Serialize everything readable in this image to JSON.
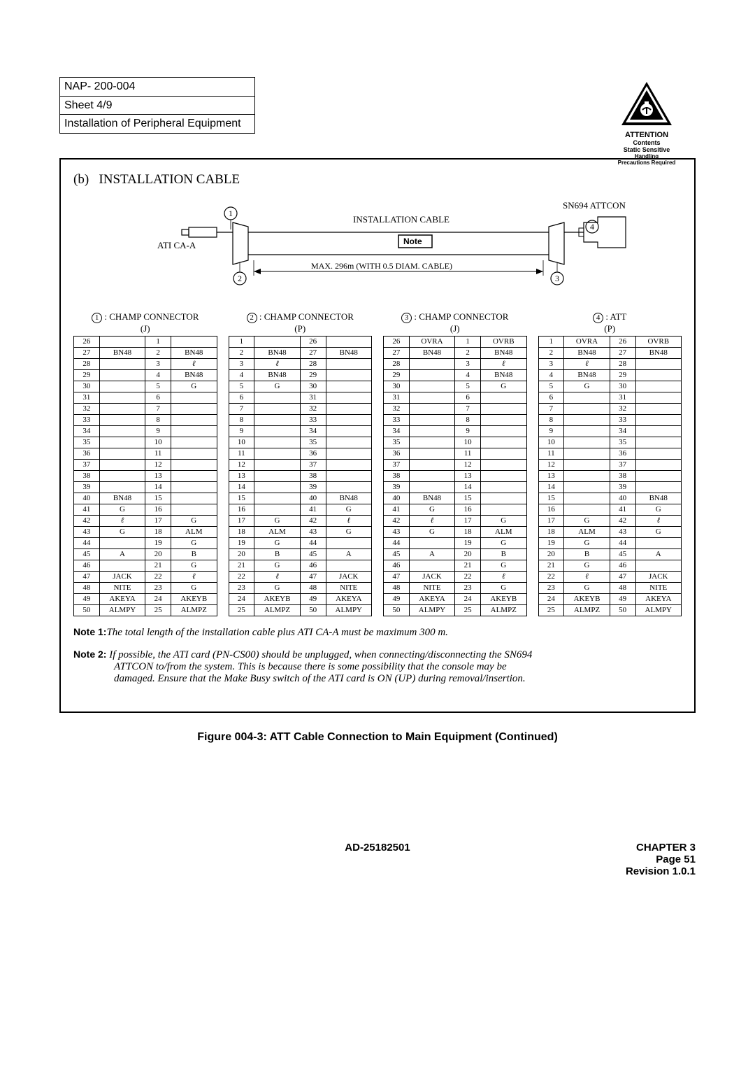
{
  "header": {
    "nap": "NAP- 200-004",
    "sheet": "Sheet 4/9",
    "title": "Installation of Peripheral Equipment"
  },
  "attention": {
    "l1": "ATTENTION",
    "l2": "Contents",
    "l3": "Static Sensitive",
    "l4": "Handling",
    "l5": "Precautions Required"
  },
  "diagram": {
    "section_label": "(b)",
    "section_title": "INSTALLATION CABLE",
    "ati": "ATI CA-A",
    "install_cable": "INSTALLATION CABLE",
    "note_label": "Note",
    "max_label": "MAX. 296m (WITH 0.5 DIAM. CABLE)",
    "sn": "SN694 ATTCON",
    "c1": "1",
    "c2": "2",
    "c3": "3",
    "c4": "4"
  },
  "conn_labels": {
    "c1a": "1",
    "c1b": ": CHAMP CONNECTOR",
    "c1c": "(J)",
    "c2a": "2",
    "c2b": ": CHAMP CONNECTOR",
    "c2c": "(P)",
    "c3a": "3",
    "c3b": ": CHAMP CONNECTOR",
    "c3c": "(J)",
    "c4a": "4",
    "c4b": ": ATT",
    "c4c": "(P)"
  },
  "tables": {
    "t1": [
      [
        "26",
        "",
        "1",
        ""
      ],
      [
        "27",
        "BN48",
        "2",
        "BN48"
      ],
      [
        "28",
        "",
        "3",
        "ℓ"
      ],
      [
        "29",
        "",
        "4",
        "BN48"
      ],
      [
        "30",
        "",
        "5",
        "G"
      ],
      [
        "31",
        "",
        "6",
        ""
      ],
      [
        "32",
        "",
        "7",
        ""
      ],
      [
        "33",
        "",
        "8",
        ""
      ],
      [
        "34",
        "",
        "9",
        ""
      ],
      [
        "35",
        "",
        "10",
        ""
      ],
      [
        "36",
        "",
        "11",
        ""
      ],
      [
        "37",
        "",
        "12",
        ""
      ],
      [
        "38",
        "",
        "13",
        ""
      ],
      [
        "39",
        "",
        "14",
        ""
      ],
      [
        "40",
        "BN48",
        "15",
        ""
      ],
      [
        "41",
        "G",
        "16",
        ""
      ],
      [
        "42",
        "ℓ",
        "17",
        "G"
      ],
      [
        "43",
        "G",
        "18",
        "ALM"
      ],
      [
        "44",
        "",
        "19",
        "G"
      ],
      [
        "45",
        "A",
        "20",
        "B"
      ],
      [
        "46",
        "",
        "21",
        "G"
      ],
      [
        "47",
        "JACK",
        "22",
        "ℓ"
      ],
      [
        "48",
        "NITE",
        "23",
        "G"
      ],
      [
        "49",
        "AKEYA",
        "24",
        "AKEYB"
      ],
      [
        "50",
        "ALMPY",
        "25",
        "ALMPZ"
      ]
    ],
    "t2": [
      [
        "1",
        "",
        "26",
        ""
      ],
      [
        "2",
        "BN48",
        "27",
        "BN48"
      ],
      [
        "3",
        "ℓ",
        "28",
        ""
      ],
      [
        "4",
        "BN48",
        "29",
        ""
      ],
      [
        "5",
        "G",
        "30",
        ""
      ],
      [
        "6",
        "",
        "31",
        ""
      ],
      [
        "7",
        "",
        "32",
        ""
      ],
      [
        "8",
        "",
        "33",
        ""
      ],
      [
        "9",
        "",
        "34",
        ""
      ],
      [
        "10",
        "",
        "35",
        ""
      ],
      [
        "11",
        "",
        "36",
        ""
      ],
      [
        "12",
        "",
        "37",
        ""
      ],
      [
        "13",
        "",
        "38",
        ""
      ],
      [
        "14",
        "",
        "39",
        ""
      ],
      [
        "15",
        "",
        "40",
        "BN48"
      ],
      [
        "16",
        "",
        "41",
        "G"
      ],
      [
        "17",
        "G",
        "42",
        "ℓ"
      ],
      [
        "18",
        "ALM",
        "43",
        "G"
      ],
      [
        "19",
        "G",
        "44",
        ""
      ],
      [
        "20",
        "B",
        "45",
        "A"
      ],
      [
        "21",
        "G",
        "46",
        ""
      ],
      [
        "22",
        "ℓ",
        "47",
        "JACK"
      ],
      [
        "23",
        "G",
        "48",
        "NITE"
      ],
      [
        "24",
        "AKEYB",
        "49",
        "AKEYA"
      ],
      [
        "25",
        "ALMPZ",
        "50",
        "ALMPY"
      ]
    ],
    "t3": [
      [
        "26",
        "OVRA",
        "1",
        "OVRB"
      ],
      [
        "27",
        "BN48",
        "2",
        "BN48"
      ],
      [
        "28",
        "",
        "3",
        "ℓ"
      ],
      [
        "29",
        "",
        "4",
        "BN48"
      ],
      [
        "30",
        "",
        "5",
        "G"
      ],
      [
        "31",
        "",
        "6",
        ""
      ],
      [
        "32",
        "",
        "7",
        ""
      ],
      [
        "33",
        "",
        "8",
        ""
      ],
      [
        "34",
        "",
        "9",
        ""
      ],
      [
        "35",
        "",
        "10",
        ""
      ],
      [
        "36",
        "",
        "11",
        ""
      ],
      [
        "37",
        "",
        "12",
        ""
      ],
      [
        "38",
        "",
        "13",
        ""
      ],
      [
        "39",
        "",
        "14",
        ""
      ],
      [
        "40",
        "BN48",
        "15",
        ""
      ],
      [
        "41",
        "G",
        "16",
        ""
      ],
      [
        "42",
        "ℓ",
        "17",
        "G"
      ],
      [
        "43",
        "G",
        "18",
        "ALM"
      ],
      [
        "44",
        "",
        "19",
        "G"
      ],
      [
        "45",
        "A",
        "20",
        "B"
      ],
      [
        "46",
        "",
        "21",
        "G"
      ],
      [
        "47",
        "JACK",
        "22",
        "ℓ"
      ],
      [
        "48",
        "NITE",
        "23",
        "G"
      ],
      [
        "49",
        "AKEYA",
        "24",
        "AKEYB"
      ],
      [
        "50",
        "ALMPY",
        "25",
        "ALMPZ"
      ]
    ],
    "t4": [
      [
        "1",
        "OVRA",
        "26",
        "OVRB"
      ],
      [
        "2",
        "BN48",
        "27",
        "BN48"
      ],
      [
        "3",
        "ℓ",
        "28",
        ""
      ],
      [
        "4",
        "BN48",
        "29",
        ""
      ],
      [
        "5",
        "G",
        "30",
        ""
      ],
      [
        "6",
        "",
        "31",
        ""
      ],
      [
        "7",
        "",
        "32",
        ""
      ],
      [
        "8",
        "",
        "33",
        ""
      ],
      [
        "9",
        "",
        "34",
        ""
      ],
      [
        "10",
        "",
        "35",
        ""
      ],
      [
        "11",
        "",
        "36",
        ""
      ],
      [
        "12",
        "",
        "37",
        ""
      ],
      [
        "13",
        "",
        "38",
        ""
      ],
      [
        "14",
        "",
        "39",
        ""
      ],
      [
        "15",
        "",
        "40",
        "BN48"
      ],
      [
        "16",
        "",
        "41",
        "G"
      ],
      [
        "17",
        "G",
        "42",
        "ℓ"
      ],
      [
        "18",
        "ALM",
        "43",
        "G"
      ],
      [
        "19",
        "G",
        "44",
        ""
      ],
      [
        "20",
        "B",
        "45",
        "A"
      ],
      [
        "21",
        "G",
        "46",
        ""
      ],
      [
        "22",
        "ℓ",
        "47",
        "JACK"
      ],
      [
        "23",
        "G",
        "48",
        "NITE"
      ],
      [
        "24",
        "AKEYB",
        "49",
        "AKEYA"
      ],
      [
        "25",
        "ALMPZ",
        "50",
        "ALMPY"
      ]
    ]
  },
  "notes": {
    "n1_label": "Note 1:",
    "n1_text": "The total length of the installation cable plus ATI CA-A must be maximum 300 m.",
    "n2_label": "Note 2:",
    "n2_text1": "If possible, the ATI card (PN-CS00) should be unplugged, when connecting/disconnecting the SN694",
    "n2_text2": "ATTCON to/from the system. This is because there is some possibility that the console may be",
    "n2_text3": "damaged.  Ensure that the Make Busy switch of the ATI card is ON (UP) during removal/insertion."
  },
  "caption": "Figure 004-3:  ATT Cable Connection to Main Equipment (Continued)",
  "footer": {
    "center": "AD-25182501",
    "r1": "CHAPTER 3",
    "r2": "Page 51",
    "r3": "Revision 1.0.1"
  }
}
